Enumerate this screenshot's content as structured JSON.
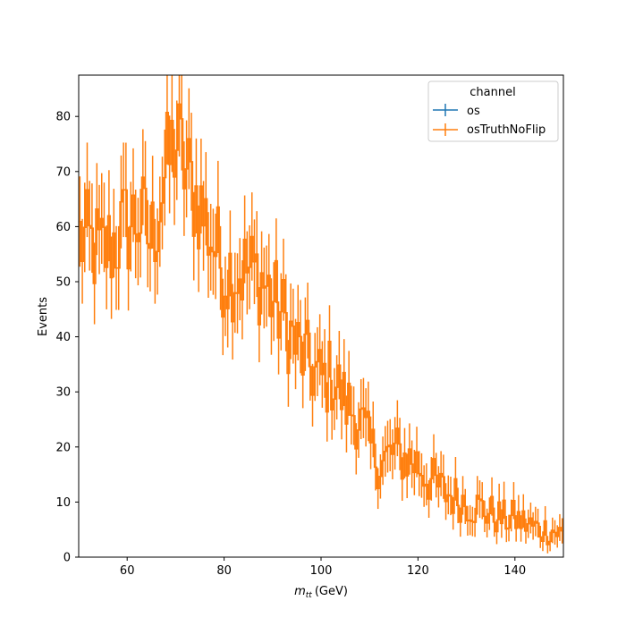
{
  "chart_data": {
    "type": "line",
    "title": "",
    "xlabel": "m",
    "xlabel_subscript": "tt",
    "xlabel_unit": "(GeV)",
    "ylabel": "Events",
    "xlim": [
      50,
      150
    ],
    "ylim": [
      0,
      87.5
    ],
    "x_ticks": [
      60,
      80,
      100,
      120,
      140
    ],
    "y_ticks": [
      0,
      10,
      20,
      30,
      40,
      50,
      60,
      70,
      80
    ],
    "grid": false,
    "legend": {
      "title": "channel",
      "position": "top-right",
      "entries": [
        {
          "name": "os",
          "color": "#1f77b4"
        },
        {
          "name": "osTruthNoFlip",
          "color": "#ff7f0e"
        }
      ]
    },
    "bin_width": 0.5,
    "series": [
      {
        "name": "osTruthNoFlip",
        "color": "#ff7f0e",
        "style": "step-with-errorbars",
        "x": [
          50,
          55,
          60,
          62.5,
          65,
          67.5,
          70,
          72.5,
          75,
          77.5,
          80,
          82.5,
          85,
          87.5,
          90,
          92.5,
          95,
          97.5,
          100,
          102.5,
          105,
          107.5,
          110,
          112.5,
          115,
          117.5,
          120,
          122.5,
          125,
          127.5,
          130,
          132.5,
          135,
          137.5,
          140,
          142.5,
          145,
          147.5,
          150
        ],
        "y": [
          58,
          55,
          60,
          62,
          57,
          68,
          76,
          69,
          64,
          58,
          52,
          52,
          52,
          51,
          47,
          43,
          38,
          35,
          32,
          33,
          28,
          26,
          20,
          17,
          19,
          18,
          17,
          14,
          12,
          11,
          10,
          9,
          8,
          7,
          7,
          6,
          5,
          5,
          4
        ]
      }
    ]
  }
}
